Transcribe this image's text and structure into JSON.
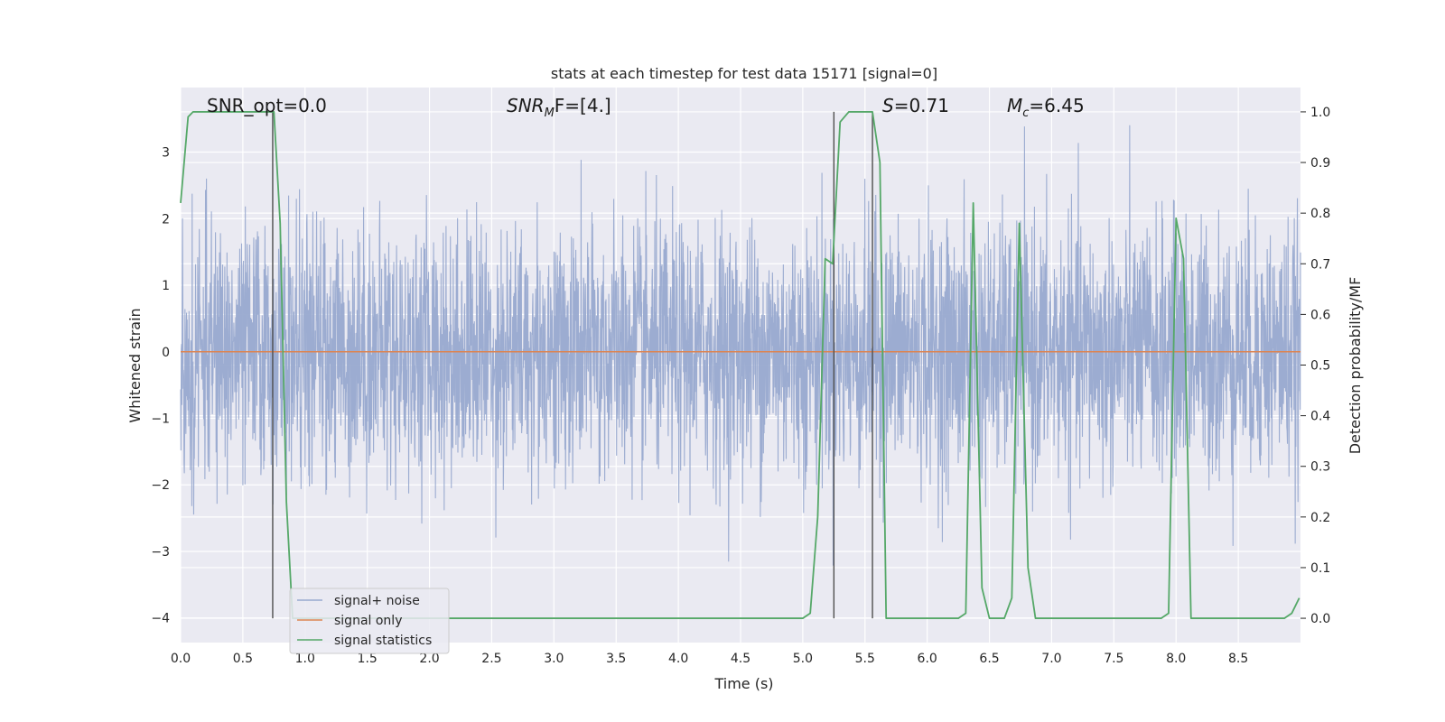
{
  "chart_data": {
    "type": "line",
    "title": "stats at each timestep for test data 15171 [signal=0]",
    "xlabel": "Time (s)",
    "ylabel": "Whitened strain",
    "y2label": "Detection probability/MF",
    "xlim": [
      0,
      9.0
    ],
    "ylim": [
      -4.37,
      3.97
    ],
    "y2lim": [
      -0.048,
      1.048
    ],
    "x_ticks": [
      0.0,
      0.5,
      1.0,
      1.5,
      2.0,
      2.5,
      3.0,
      3.5,
      4.0,
      4.5,
      5.0,
      5.5,
      6.0,
      6.5,
      7.0,
      7.5,
      8.0,
      8.5
    ],
    "x_tick_labels": [
      "0.0",
      "0.5",
      "1.0",
      "1.5",
      "2.0",
      "2.5",
      "3.0",
      "3.5",
      "4.0",
      "4.5",
      "5.0",
      "5.5",
      "6.0",
      "6.5",
      "7.0",
      "7.5",
      "8.0",
      "8.5"
    ],
    "y_ticks": [
      3,
      2,
      1,
      0,
      -1,
      -2,
      -3,
      -4
    ],
    "y_tick_labels": [
      "3",
      "2",
      "1",
      "0",
      "−1",
      "−2",
      "−3",
      "−4"
    ],
    "y2_ticks": [
      1.0,
      0.9,
      0.8,
      0.7,
      0.6,
      0.5,
      0.4,
      0.3,
      0.2,
      0.1,
      0.0
    ],
    "y2_tick_labels": [
      "1.0",
      "0.9",
      "0.8",
      "0.7",
      "0.6",
      "0.5",
      "0.4",
      "0.3",
      "0.2",
      "0.1",
      "0.0"
    ],
    "grid": true,
    "legend_position": "lower-left",
    "annotations": {
      "snr_opt": "SNR_opt=0.0",
      "snr_mf_base": "SNR",
      "snr_mf_sub": "M",
      "snr_mf_rest": "F=[4.]",
      "s_base": "S",
      "s_rest": "=0.71",
      "mc_base": "M",
      "mc_sub": "c",
      "mc_rest": "=6.45"
    },
    "series": [
      {
        "name": "signal+ noise",
        "axis": "left",
        "color": "#98a9cf",
        "kind": "noise",
        "duration": 9.0,
        "note_sigma": 1.0
      },
      {
        "name": "signal only",
        "axis": "left",
        "color": "#dd8452",
        "x": [
          0,
          9.0
        ],
        "y": [
          0,
          0
        ]
      },
      {
        "name": "signal statistics",
        "axis": "right",
        "color": "#55a868",
        "x": [
          0.0,
          0.06,
          0.1,
          0.2,
          0.3,
          0.4,
          0.5,
          0.6,
          0.7,
          0.75,
          0.8,
          0.85,
          0.9,
          1.0,
          2.0,
          3.0,
          4.0,
          4.5,
          5.0,
          5.06,
          5.12,
          5.18,
          5.24,
          5.3,
          5.37,
          5.44,
          5.5,
          5.56,
          5.62,
          5.67,
          5.74,
          5.8,
          6.0,
          6.25,
          6.31,
          6.37,
          6.44,
          6.5,
          6.62,
          6.68,
          6.74,
          6.81,
          6.87,
          7.0,
          7.5,
          7.88,
          7.94,
          8.0,
          8.06,
          8.12,
          8.5,
          8.87,
          8.93,
          8.99
        ],
        "y": [
          0.82,
          0.99,
          1.0,
          1.0,
          1.0,
          1.0,
          1.0,
          1.0,
          1.0,
          1.0,
          0.78,
          0.23,
          0.0,
          0.0,
          0.0,
          0.0,
          0.0,
          0.0,
          0.0,
          0.01,
          0.2,
          0.71,
          0.7,
          0.98,
          1.0,
          1.0,
          1.0,
          1.0,
          0.9,
          0.0,
          0.0,
          0.0,
          0.0,
          0.0,
          0.01,
          0.82,
          0.06,
          0.0,
          0.0,
          0.04,
          0.78,
          0.1,
          0.0,
          0.0,
          0.0,
          0.0,
          0.01,
          0.79,
          0.71,
          0.0,
          0.0,
          0.0,
          0.01,
          0.04
        ]
      }
    ],
    "vertical_lines": [
      0.74,
      5.25,
      5.56
    ],
    "vertical_line_color": "#4f4f4f"
  }
}
